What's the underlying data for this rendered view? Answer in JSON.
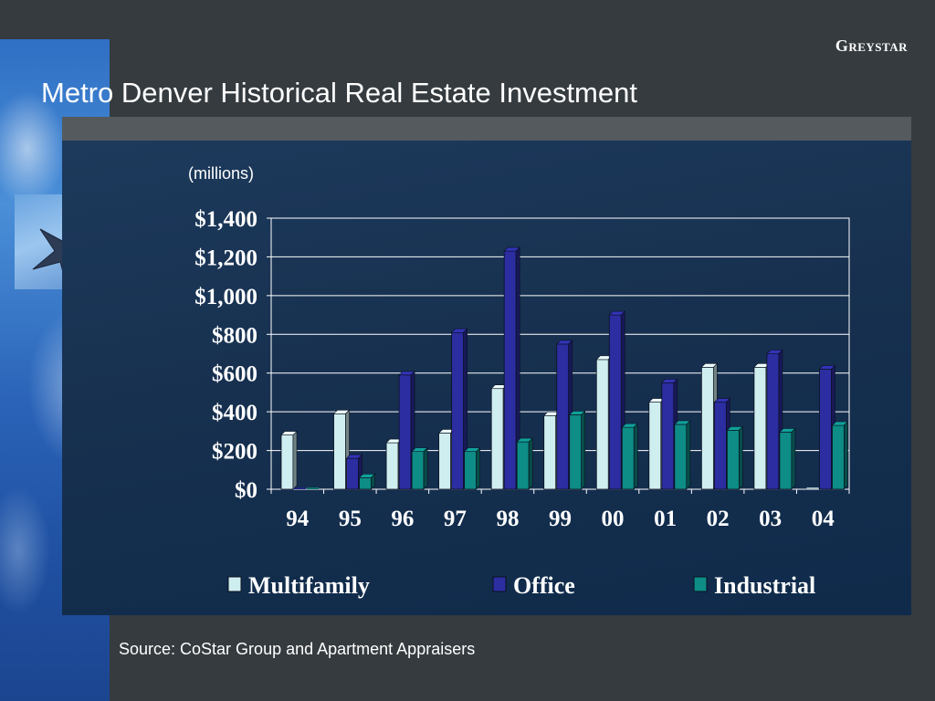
{
  "header": {
    "brand": "Greystar",
    "title": "Metro Denver Historical Real Estate Investment"
  },
  "footer": {
    "source": "Source:  CoStar Group and Apartment Appraisers"
  },
  "colors": {
    "multifamily": "#cfeef0",
    "office": "#2c2da0",
    "industrial": "#0e8c86"
  },
  "chart_data": {
    "type": "bar",
    "units_label": "(millions)",
    "categories": [
      "94",
      "95",
      "96",
      "97",
      "98",
      "99",
      "00",
      "01",
      "02",
      "03",
      "04"
    ],
    "series": [
      {
        "name": "Multifamily",
        "values": [
          280,
          390,
          240,
          290,
          520,
          380,
          670,
          450,
          630,
          630,
          0
        ]
      },
      {
        "name": "Office",
        "values": [
          0,
          160,
          590,
          810,
          1230,
          750,
          900,
          550,
          450,
          700,
          620
        ]
      },
      {
        "name": "Industrial",
        "values": [
          0,
          60,
          195,
          195,
          245,
          385,
          320,
          335,
          305,
          295,
          330
        ]
      }
    ],
    "y_ticks": [
      "$0",
      "$200",
      "$400",
      "$600",
      "$800",
      "$1,000",
      "$1,200",
      "$1,400"
    ],
    "ylim": [
      0,
      1400
    ],
    "grid": true,
    "legend_position": "bottom"
  }
}
